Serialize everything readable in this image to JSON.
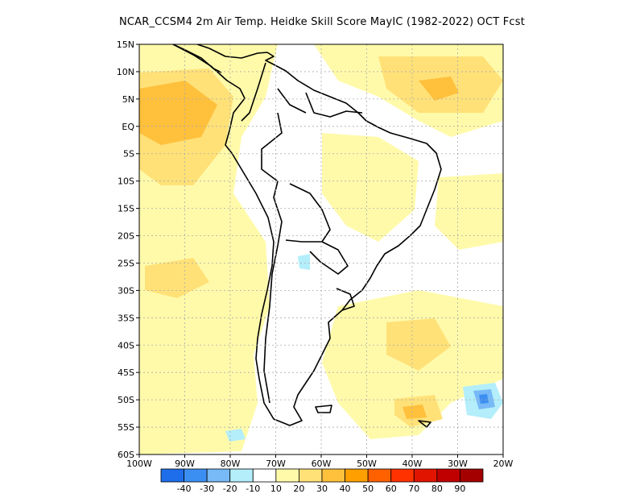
{
  "title": "NCAR_CCSM4  2m Air Temp. Heidke Skill Score MayIC (1982-2022) OCT Fcst",
  "map": {
    "lon_labels": [
      "100W",
      "90W",
      "80W",
      "70W",
      "60W",
      "50W",
      "40W",
      "30W",
      "20W"
    ],
    "lat_labels": [
      "15N",
      "10N",
      "5N",
      "EQ",
      "5S",
      "10S",
      "15S",
      "20S",
      "25S",
      "30S",
      "35S",
      "40S",
      "45S",
      "50S",
      "55S",
      "60S"
    ],
    "lon_range": [
      -100,
      -20
    ],
    "lat_range": [
      -60,
      15
    ],
    "grid": "dotted"
  },
  "colorbar": {
    "levels": [
      "-40",
      "-30",
      "-20",
      "-10",
      "10",
      "20",
      "30",
      "40",
      "50",
      "60",
      "70",
      "80",
      "90"
    ],
    "colors": [
      "#1e6eeb",
      "#3c8ff2",
      "#78b9f7",
      "#b3eefa",
      "#ffffff",
      "#fffaaa",
      "#ffe178",
      "#ffc03c",
      "#ffa000",
      "#ff6000",
      "#ff3200",
      "#e11400",
      "#c00000",
      "#a50000"
    ]
  }
}
